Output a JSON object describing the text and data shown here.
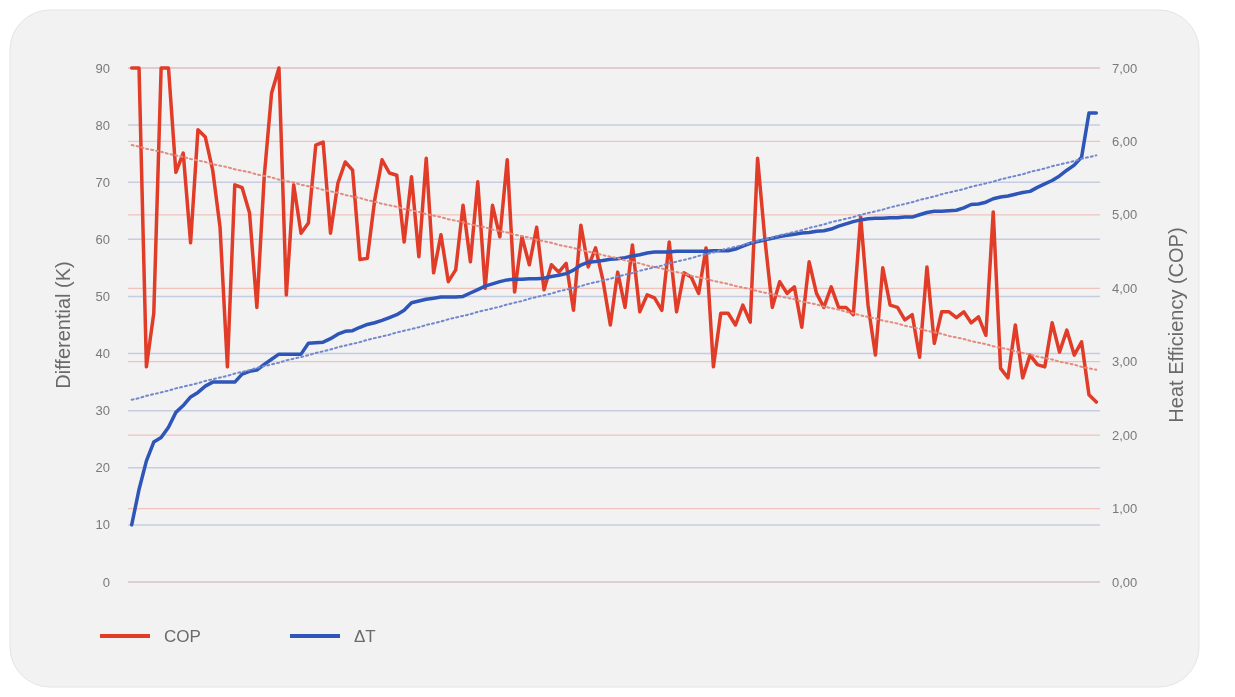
{
  "chart_data": {
    "type": "line",
    "ylabel": "Differential (K)",
    "y2label": "Heat Efficiency (COP)",
    "categories": [
      null,
      null,
      null,
      null,
      null,
      null,
      null,
      null,
      null,
      null,
      null,
      null,
      null,
      null,
      null,
      null,
      null,
      null,
      null,
      null,
      null,
      null,
      null,
      null,
      null,
      null,
      null,
      null,
      null,
      null,
      null,
      null,
      null,
      null,
      null,
      null,
      null,
      null,
      null,
      null,
      null,
      null,
      null,
      null,
      null,
      null,
      null,
      null,
      null,
      null,
      null,
      null,
      null,
      null,
      null,
      null,
      null,
      null,
      null,
      null,
      null,
      null,
      null,
      null,
      null,
      null,
      null,
      null,
      null,
      null,
      null,
      null,
      null,
      null,
      null,
      null,
      null,
      null,
      null,
      null,
      null,
      null,
      null,
      null,
      null,
      null,
      null,
      null,
      null,
      null,
      null,
      null,
      null,
      null,
      null,
      null,
      null,
      null,
      null,
      null,
      null,
      null,
      null,
      null,
      null,
      null,
      null,
      null,
      null,
      null,
      null,
      null,
      null,
      null,
      null,
      null,
      null,
      null,
      null,
      null,
      null,
      null,
      null,
      null,
      null,
      null,
      null,
      null,
      null,
      null,
      null,
      null
    ],
    "ylim": [
      0,
      90
    ],
    "yticks": [
      0,
      10,
      20,
      30,
      40,
      50,
      60,
      70,
      80,
      90
    ],
    "y2lim": [
      0,
      7
    ],
    "y2ticks": [
      {
        "value": 0,
        "label": "0,00"
      },
      {
        "value": 1,
        "label": "1,00"
      },
      {
        "value": 2,
        "label": "2,00"
      },
      {
        "value": 3,
        "label": "3,00"
      },
      {
        "value": 4,
        "label": "4,00"
      },
      {
        "value": 5,
        "label": "5,00"
      },
      {
        "value": 6,
        "label": "6,00"
      },
      {
        "value": 7,
        "label": "7,00"
      }
    ],
    "grid": "y",
    "legend": "bottom left",
    "line_style": "solid",
    "series": [
      {
        "name": "COP",
        "color": "#e03c28",
        "axis": "y2",
        "values": [
          7.0,
          7.0,
          2.93,
          3.66,
          7.0,
          7.0,
          5.58,
          5.84,
          4.62,
          6.16,
          6.06,
          5.61,
          4.83,
          2.93,
          5.41,
          5.37,
          5.03,
          3.74,
          5.52,
          6.66,
          7.0,
          3.91,
          5.41,
          4.75,
          4.89,
          5.95,
          5.99,
          4.75,
          5.43,
          5.72,
          5.61,
          4.39,
          4.41,
          5.2,
          5.75,
          5.57,
          5.54,
          4.63,
          5.52,
          4.43,
          5.77,
          4.21,
          4.73,
          4.09,
          4.25,
          5.13,
          4.36,
          5.45,
          4.0,
          5.13,
          4.7,
          5.75,
          3.95,
          4.7,
          4.32,
          4.83,
          3.98,
          4.32,
          4.22,
          4.34,
          3.7,
          4.86,
          4.29,
          4.55,
          4.11,
          3.5,
          4.22,
          3.74,
          4.59,
          3.68,
          3.91,
          3.87,
          3.7,
          4.63,
          3.68,
          4.21,
          4.15,
          3.93,
          4.55,
          2.93,
          3.66,
          3.66,
          3.5,
          3.77,
          3.54,
          5.77,
          4.66,
          3.74,
          4.09,
          3.93,
          4.02,
          3.47,
          4.36,
          3.93,
          3.74,
          4.02,
          3.74,
          3.74,
          3.64,
          4.97,
          3.77,
          3.09,
          4.28,
          3.77,
          3.74,
          3.57,
          3.64,
          3.06,
          4.29,
          3.25,
          3.68,
          3.68,
          3.6,
          3.68,
          3.53,
          3.61,
          3.36,
          5.04,
          2.91,
          2.78,
          3.5,
          2.78,
          3.09,
          2.96,
          2.93,
          3.53,
          3.13,
          3.43,
          3.09,
          3.27,
          2.55,
          2.45
        ]
      },
      {
        "name": "ΔT",
        "color": "#2e56b8",
        "values": [
          10,
          16.2,
          21.2,
          24.5,
          25.3,
          27.1,
          29.7,
          30.9,
          32.4,
          33.2,
          34.3,
          35,
          35,
          35,
          35,
          36.4,
          36.9,
          37.1,
          38.1,
          39.0,
          39.9,
          39.9,
          39.9,
          39.9,
          41.8,
          41.9,
          42.0,
          42.6,
          43.4,
          43.9,
          44.0,
          44.6,
          45.1,
          45.4,
          45.8,
          46.3,
          46.8,
          47.6,
          48.9,
          49.2,
          49.5,
          49.7,
          49.9,
          49.9,
          49.9,
          50.0,
          50.6,
          51.2,
          51.8,
          52.2,
          52.6,
          52.9,
          53.0,
          53.0,
          53.1,
          53.1,
          53.2,
          53.5,
          53.7,
          54.0,
          54.6,
          55.5,
          56.0,
          56.1,
          56.3,
          56.5,
          56.6,
          56.8,
          57.1,
          57.3,
          57.6,
          57.8,
          57.8,
          57.8,
          57.9,
          57.9,
          57.9,
          57.9,
          57.9,
          58.0,
          58.0,
          58.0,
          58.3,
          58.8,
          59.3,
          59.6,
          59.9,
          60.2,
          60.5,
          60.7,
          60.9,
          61.1,
          61.2,
          61.4,
          61.5,
          61.8,
          62.3,
          62.7,
          63.1,
          63.4,
          63.6,
          63.7,
          63.7,
          63.8,
          63.8,
          63.9,
          63.9,
          64.3,
          64.7,
          64.9,
          64.9,
          65.0,
          65.1,
          65.5,
          66.1,
          66.2,
          66.5,
          67.1,
          67.4,
          67.6,
          67.9,
          68.2,
          68.4,
          69.1,
          69.7,
          70.3,
          71.1,
          72.1,
          73.0,
          74.4,
          82.1,
          82.1
        ]
      },
      {
        "color": "#e58a7c",
        "axis": "y2",
        "line_style": "dotted",
        "values": [
          5.95,
          5.93,
          5.9,
          5.88,
          5.86,
          5.83,
          5.81,
          5.79,
          5.76,
          5.74,
          5.72,
          5.69,
          5.67,
          5.65,
          5.62,
          5.6,
          5.58,
          5.55,
          5.53,
          5.51,
          5.48,
          5.46,
          5.44,
          5.41,
          5.39,
          5.37,
          5.34,
          5.32,
          5.3,
          5.27,
          5.25,
          5.23,
          5.2,
          5.18,
          5.15,
          5.13,
          5.11,
          5.08,
          5.06,
          5.04,
          5.01,
          4.99,
          4.97,
          4.94,
          4.92,
          4.9,
          4.87,
          4.85,
          4.83,
          4.8,
          4.78,
          4.76,
          4.73,
          4.71,
          4.69,
          4.66,
          4.64,
          4.62,
          4.59,
          4.57,
          4.55,
          4.52,
          4.5,
          4.48,
          4.45,
          4.43,
          4.41,
          4.38,
          4.36,
          4.34,
          4.31,
          4.29,
          4.27,
          4.24,
          4.22,
          4.2,
          4.17,
          4.15,
          4.13,
          4.1,
          4.08,
          4.06,
          4.03,
          4.01,
          3.99,
          3.96,
          3.94,
          3.92,
          3.89,
          3.87,
          3.85,
          3.82,
          3.8,
          3.78,
          3.75,
          3.73,
          3.71,
          3.68,
          3.66,
          3.63,
          3.61,
          3.59,
          3.56,
          3.54,
          3.52,
          3.49,
          3.47,
          3.45,
          3.42,
          3.4,
          3.38,
          3.35,
          3.33,
          3.31,
          3.28,
          3.26,
          3.24,
          3.21,
          3.19,
          3.17,
          3.14,
          3.12,
          3.1,
          3.07,
          3.05,
          3.03,
          3.0,
          2.98,
          2.96,
          2.93,
          2.91,
          2.89
        ]
      },
      {
        "color": "#7388cc",
        "line_style": "dotted",
        "values": [
          31.9,
          32.2,
          32.6,
          32.9,
          33.2,
          33.5,
          33.9,
          34.2,
          34.5,
          34.8,
          35.2,
          35.5,
          35.8,
          36.1,
          36.5,
          36.8,
          37.1,
          37.5,
          37.8,
          38.1,
          38.4,
          38.8,
          39.1,
          39.4,
          39.7,
          40.1,
          40.4,
          40.7,
          41.1,
          41.4,
          41.7,
          42.0,
          42.4,
          42.7,
          43.0,
          43.3,
          43.7,
          44.0,
          44.3,
          44.6,
          45.0,
          45.3,
          45.6,
          46.0,
          46.3,
          46.6,
          46.9,
          47.3,
          47.6,
          47.9,
          48.2,
          48.6,
          48.9,
          49.2,
          49.6,
          49.9,
          50.2,
          50.5,
          50.9,
          51.2,
          51.5,
          51.8,
          52.2,
          52.5,
          52.8,
          53.1,
          53.5,
          53.8,
          54.1,
          54.5,
          54.8,
          55.1,
          55.4,
          55.8,
          56.1,
          56.4,
          56.7,
          57.1,
          57.4,
          57.7,
          58.1,
          58.4,
          58.7,
          59.0,
          59.4,
          59.7,
          60.0,
          60.3,
          60.7,
          61.0,
          61.3,
          61.6,
          62.0,
          62.3,
          62.6,
          63.0,
          63.3,
          63.6,
          63.9,
          64.3,
          64.6,
          64.9,
          65.2,
          65.6,
          65.9,
          66.2,
          66.5,
          66.9,
          67.2,
          67.5,
          67.9,
          68.2,
          68.5,
          68.8,
          69.2,
          69.5,
          69.8,
          70.1,
          70.5,
          70.8,
          71.1,
          71.4,
          71.8,
          72.1,
          72.4,
          72.8,
          73.1,
          73.4,
          73.7,
          74.1,
          74.4,
          74.7
        ]
      }
    ]
  }
}
